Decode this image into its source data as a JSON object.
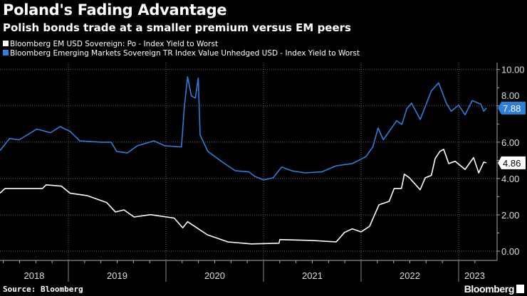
{
  "header": {
    "title": "Poland's Fading Advantage",
    "subtitle": "Polish bonds trade at a smaller premium versus EM peers"
  },
  "footer": {
    "source": "Source: Bloomberg",
    "logo": "Bloomberg"
  },
  "chart_data": {
    "type": "line",
    "title": "Poland's Fading Advantage",
    "subtitle": "Polish bonds trade at a smaller premium versus EM peers",
    "xlabel": "",
    "ylabel": "",
    "x_tick_labels": [
      "2018",
      "2019",
      "2020",
      "2021",
      "2022",
      "2023"
    ],
    "y_tick_labels": [
      "0.00",
      "2.00",
      "4.00",
      "6.00",
      "8.00",
      "10.00"
    ],
    "y_ticks": [
      0,
      2,
      4,
      6,
      8,
      10
    ],
    "ylim": [
      -0.5,
      10.3
    ],
    "xlim": [
      "2018-04-20",
      "2023-05-01"
    ],
    "y_axis_side": "right",
    "grid": true,
    "legend_placement": "top-left",
    "series": [
      {
        "name": "Bloomberg EM USD Sovereign: Po - Index Yield to Worst",
        "color": "#ffffff",
        "last_value_label": "4.86",
        "points": [
          [
            "2018-04-20",
            3.19
          ],
          [
            "2018-05-09",
            3.45
          ],
          [
            "2018-07-01",
            3.45
          ],
          [
            "2018-09-26",
            3.45
          ],
          [
            "2018-10-10",
            3.65
          ],
          [
            "2018-12-06",
            3.58
          ],
          [
            "2019-01-08",
            3.19
          ],
          [
            "2019-03-12",
            3.06
          ],
          [
            "2019-05-25",
            2.67
          ],
          [
            "2019-06-26",
            2.16
          ],
          [
            "2019-07-28",
            2.27
          ],
          [
            "2019-09-04",
            1.88
          ],
          [
            "2019-11-04",
            2.01
          ],
          [
            "2020-02-01",
            1.82
          ],
          [
            "2020-03-04",
            1.29
          ],
          [
            "2020-03-22",
            1.62
          ],
          [
            "2020-06-04",
            0.9
          ],
          [
            "2020-08-20",
            0.51
          ],
          [
            "2020-11-16",
            0.4
          ],
          [
            "2021-02-28",
            0.44
          ],
          [
            "2021-03-03",
            0.64
          ],
          [
            "2021-07-01",
            0.59
          ],
          [
            "2021-09-30",
            0.51
          ],
          [
            "2021-10-31",
            1.03
          ],
          [
            "2021-11-29",
            1.23
          ],
          [
            "2022-01-01",
            1.06
          ],
          [
            "2022-02-02",
            1.37
          ],
          [
            "2022-03-09",
            2.55
          ],
          [
            "2022-04-16",
            2.74
          ],
          [
            "2022-05-05",
            3.45
          ],
          [
            "2022-06-01",
            3.45
          ],
          [
            "2022-06-12",
            4.24
          ],
          [
            "2022-07-01",
            4.04
          ],
          [
            "2022-08-10",
            3.38
          ],
          [
            "2022-08-29",
            4.04
          ],
          [
            "2022-09-21",
            4.17
          ],
          [
            "2022-10-05",
            5.1
          ],
          [
            "2022-10-23",
            5.49
          ],
          [
            "2022-11-06",
            5.61
          ],
          [
            "2022-11-25",
            4.82
          ],
          [
            "2022-12-19",
            4.95
          ],
          [
            "2023-01-25",
            4.5
          ],
          [
            "2023-02-26",
            5.15
          ],
          [
            "2023-03-17",
            4.31
          ],
          [
            "2023-04-05",
            4.9
          ],
          [
            "2023-04-15",
            4.86
          ]
        ]
      },
      {
        "name": "Bloomberg Emerging Markets Sovereign TR Index Value Unhedged USD - Index Yield to Worst",
        "color": "#2d7fdc",
        "last_value_label": "7.88",
        "points": [
          [
            "2018-04-20",
            5.54
          ],
          [
            "2018-05-26",
            6.2
          ],
          [
            "2018-07-01",
            6.13
          ],
          [
            "2018-09-05",
            6.72
          ],
          [
            "2018-10-26",
            6.52
          ],
          [
            "2018-12-01",
            6.86
          ],
          [
            "2019-01-08",
            6.59
          ],
          [
            "2019-02-13",
            6.07
          ],
          [
            "2019-05-05",
            6.0
          ],
          [
            "2019-06-10",
            6.0
          ],
          [
            "2019-07-01",
            5.49
          ],
          [
            "2019-08-10",
            5.41
          ],
          [
            "2019-09-16",
            5.8
          ],
          [
            "2019-11-17",
            6.07
          ],
          [
            "2019-12-28",
            5.8
          ],
          [
            "2020-02-28",
            5.74
          ],
          [
            "2020-03-10",
            7.96
          ],
          [
            "2020-03-22",
            9.6
          ],
          [
            "2020-04-05",
            8.55
          ],
          [
            "2020-04-20",
            8.43
          ],
          [
            "2020-05-01",
            9.53
          ],
          [
            "2020-05-08",
            6.39
          ],
          [
            "2020-06-06",
            5.49
          ],
          [
            "2020-07-26",
            4.95
          ],
          [
            "2020-09-16",
            4.43
          ],
          [
            "2020-11-06",
            4.37
          ],
          [
            "2020-11-28",
            4.12
          ],
          [
            "2021-01-01",
            3.92
          ],
          [
            "2021-02-06",
            4.04
          ],
          [
            "2021-03-10",
            4.63
          ],
          [
            "2021-04-16",
            4.43
          ],
          [
            "2021-06-06",
            4.31
          ],
          [
            "2021-08-08",
            4.37
          ],
          [
            "2021-09-30",
            4.7
          ],
          [
            "2021-11-29",
            4.82
          ],
          [
            "2022-01-19",
            5.2
          ],
          [
            "2022-02-14",
            5.74
          ],
          [
            "2022-03-06",
            6.78
          ],
          [
            "2022-03-25",
            6.13
          ],
          [
            "2022-05-14",
            7.18
          ],
          [
            "2022-06-03",
            6.98
          ],
          [
            "2022-06-21",
            7.84
          ],
          [
            "2022-07-09",
            8.15
          ],
          [
            "2022-08-10",
            7.25
          ],
          [
            "2022-09-21",
            8.82
          ],
          [
            "2022-10-18",
            9.27
          ],
          [
            "2022-11-16",
            8.15
          ],
          [
            "2022-12-04",
            7.7
          ],
          [
            "2023-01-01",
            8.04
          ],
          [
            "2023-01-25",
            7.5
          ],
          [
            "2023-02-21",
            8.29
          ],
          [
            "2023-03-25",
            8.09
          ],
          [
            "2023-04-05",
            7.7
          ],
          [
            "2023-04-15",
            7.88
          ]
        ]
      }
    ]
  }
}
